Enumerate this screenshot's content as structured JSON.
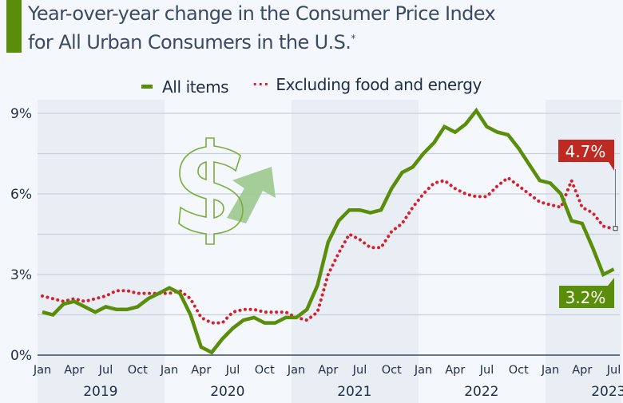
{
  "title": {
    "line1": "Year-over-year change in the Consumer Price Index",
    "line2": "for All Urban Consumers in the U.S.",
    "footnote_mark": "*"
  },
  "colors": {
    "accent": "#5a8e0a",
    "all_items": "#5a8e0a",
    "core": "#d7202e",
    "callout_red": "#be2a22",
    "grid": "#c8d0da",
    "band": "#e9eef5",
    "text": "#1f2d44",
    "dollar_outline": "#7cac3a",
    "arrow": "#9cc88f"
  },
  "legend": {
    "position": "top-center",
    "items": [
      {
        "label": "All items",
        "style": "solid"
      },
      {
        "label": "Excluding food and energy",
        "style": "dotted"
      }
    ]
  },
  "chart_data": {
    "type": "line",
    "title": "Year-over-year change in the Consumer Price Index for All Urban Consumers in the U.S.*",
    "xlabel": "",
    "ylabel": "",
    "ylim": [
      0,
      9
    ],
    "yticks": [
      0,
      3,
      6,
      9
    ],
    "ytick_labels": [
      "0%",
      "3%",
      "6%",
      "9%"
    ],
    "minor_gridlines": [
      1.5,
      4.5,
      7.5
    ],
    "grid": true,
    "x_tick_labels": [
      "Jan",
      "Apr",
      "Jul",
      "Oct",
      "Jan",
      "Apr",
      "Jul",
      "Oct",
      "Jan",
      "Apr",
      "Jul",
      "Oct",
      "Jan",
      "Apr",
      "Jul",
      "Oct",
      "Jan",
      "Apr",
      "Jul"
    ],
    "x_tick_month_index": [
      0,
      3,
      6,
      9,
      12,
      15,
      18,
      21,
      24,
      27,
      30,
      33,
      36,
      39,
      42,
      45,
      48,
      51,
      54
    ],
    "years": [
      "2019",
      "2020",
      "2021",
      "2022",
      "2023"
    ],
    "x": [
      "2019-01",
      "2019-02",
      "2019-03",
      "2019-04",
      "2019-05",
      "2019-06",
      "2019-07",
      "2019-08",
      "2019-09",
      "2019-10",
      "2019-11",
      "2019-12",
      "2020-01",
      "2020-02",
      "2020-03",
      "2020-04",
      "2020-05",
      "2020-06",
      "2020-07",
      "2020-08",
      "2020-09",
      "2020-10",
      "2020-11",
      "2020-12",
      "2021-01",
      "2021-02",
      "2021-03",
      "2021-04",
      "2021-05",
      "2021-06",
      "2021-07",
      "2021-08",
      "2021-09",
      "2021-10",
      "2021-11",
      "2021-12",
      "2022-01",
      "2022-02",
      "2022-03",
      "2022-04",
      "2022-05",
      "2022-06",
      "2022-07",
      "2022-08",
      "2022-09",
      "2022-10",
      "2022-11",
      "2022-12",
      "2023-01",
      "2023-02",
      "2023-03",
      "2023-04",
      "2023-05",
      "2023-06",
      "2023-07"
    ],
    "series": [
      {
        "name": "All items",
        "style": "solid",
        "values": [
          1.6,
          1.5,
          1.9,
          2.0,
          1.8,
          1.6,
          1.8,
          1.7,
          1.7,
          1.8,
          2.1,
          2.3,
          2.5,
          2.3,
          1.5,
          0.3,
          0.1,
          0.6,
          1.0,
          1.3,
          1.4,
          1.2,
          1.2,
          1.4,
          1.4,
          1.7,
          2.6,
          4.2,
          5.0,
          5.4,
          5.4,
          5.3,
          5.4,
          6.2,
          6.8,
          7.0,
          7.5,
          7.9,
          8.5,
          8.3,
          8.6,
          9.1,
          8.5,
          8.3,
          8.2,
          7.7,
          7.1,
          6.5,
          6.4,
          6.0,
          5.0,
          4.9,
          4.0,
          3.0,
          3.2
        ]
      },
      {
        "name": "Excluding food and energy",
        "style": "dotted",
        "values": [
          2.2,
          2.1,
          2.0,
          2.1,
          2.0,
          2.1,
          2.2,
          2.4,
          2.4,
          2.3,
          2.3,
          2.3,
          2.3,
          2.4,
          2.1,
          1.4,
          1.2,
          1.2,
          1.6,
          1.7,
          1.7,
          1.6,
          1.6,
          1.6,
          1.4,
          1.3,
          1.6,
          3.0,
          3.8,
          4.5,
          4.3,
          4.0,
          4.0,
          4.6,
          4.9,
          5.5,
          6.0,
          6.4,
          6.5,
          6.2,
          6.0,
          5.9,
          5.9,
          6.3,
          6.6,
          6.3,
          6.0,
          5.7,
          5.6,
          5.5,
          6.5,
          5.5,
          5.3,
          4.8,
          4.7
        ]
      }
    ],
    "annotations": [
      {
        "series": "Excluding food and energy",
        "label": "4.7%",
        "at": "2023-07"
      },
      {
        "series": "All items",
        "label": "3.2%",
        "at": "2023-07"
      }
    ],
    "decoration": "dollar-sign-with-up-arrow"
  }
}
